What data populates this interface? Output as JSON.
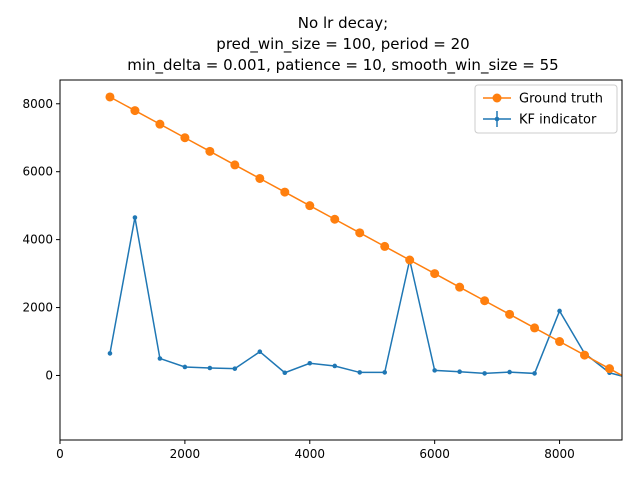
{
  "chart_data": {
    "type": "line",
    "title_lines": [
      "No lr decay;",
      "pred_win_size = 100, period = 20",
      "min_delta = 0.001, patience = 10, smooth_win_size = 55"
    ],
    "xlabel": "",
    "ylabel": "",
    "xlim": [
      0,
      9000
    ],
    "ylim": [
      -1900,
      8700
    ],
    "xticks": [
      0,
      2000,
      4000,
      6000,
      8000
    ],
    "yticks": [
      0,
      2000,
      4000,
      6000,
      8000
    ],
    "grid": false,
    "legend_position": "top-right",
    "series": [
      {
        "name": "Ground truth",
        "color": "#ff7f0e",
        "marker": "circle",
        "x": [
          800,
          1200,
          1600,
          2000,
          2400,
          2800,
          3200,
          3600,
          4000,
          4400,
          4800,
          5200,
          5600,
          6000,
          6400,
          6800,
          7200,
          7600,
          8000,
          8400,
          8800,
          9200
        ],
        "y": [
          8200,
          7800,
          7400,
          7000,
          6600,
          6200,
          5800,
          5400,
          5000,
          4600,
          4200,
          3800,
          3400,
          3000,
          2600,
          2200,
          1800,
          1400,
          1000,
          600,
          200,
          -200
        ]
      },
      {
        "name": "KF indicator",
        "color": "#1f77b4",
        "marker": "point",
        "error_bars": true,
        "x": [
          800,
          1200,
          1600,
          2000,
          2400,
          2800,
          3200,
          3600,
          4000,
          4400,
          4800,
          5200,
          5600,
          6000,
          6400,
          6800,
          7200,
          7600,
          8000,
          8400,
          8800,
          9200
        ],
        "y": [
          650,
          4650,
          500,
          250,
          220,
          200,
          700,
          80,
          360,
          280,
          90,
          90,
          3400,
          150,
          110,
          60,
          100,
          60,
          1900,
          650,
          80,
          -120
        ]
      }
    ]
  }
}
